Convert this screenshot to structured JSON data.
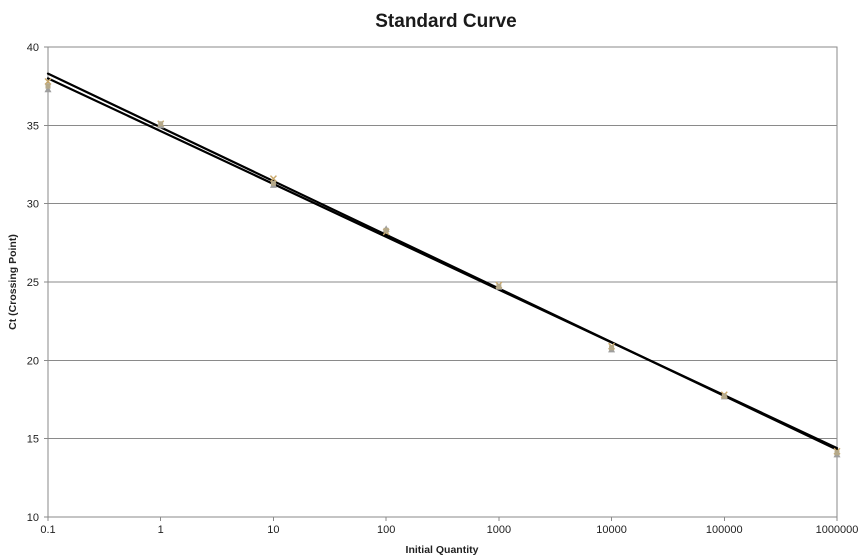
{
  "chart_data": {
    "type": "scatter",
    "title": "Standard Curve",
    "xlabel": "Initial Quantity",
    "ylabel": "Ct (Crossing Point)",
    "x_scale": "log",
    "xlim": [
      0.1,
      1000000
    ],
    "ylim": [
      10,
      40
    ],
    "x_ticks": [
      0.1,
      1,
      10,
      100,
      1000,
      10000,
      100000,
      1000000
    ],
    "x_tick_labels": [
      "0.1",
      "1",
      "10",
      "100",
      "1000",
      "10000",
      "100000",
      "1000000"
    ],
    "y_ticks": [
      10,
      15,
      20,
      25,
      30,
      35,
      40
    ],
    "y_tick_labels": [
      "10",
      "15",
      "20",
      "25",
      "30",
      "35",
      "40"
    ],
    "grid": "horizontal",
    "legend": "none",
    "series": [
      {
        "marker": "x",
        "color": "#c9a86a",
        "x": [
          0.1,
          1,
          10,
          100,
          1000,
          10000,
          100000,
          1000000
        ],
        "y": [
          37.8,
          35.1,
          31.6,
          28.2,
          24.8,
          20.9,
          17.8,
          14.2
        ]
      },
      {
        "marker": "triangle",
        "color": "#9e9e9e",
        "x": [
          0.1,
          1,
          10,
          100,
          1000,
          10000,
          100000,
          1000000
        ],
        "y": [
          37.3,
          35.0,
          31.2,
          28.4,
          24.7,
          20.7,
          17.7,
          14.0
        ]
      },
      {
        "marker": "square",
        "color": "#b5a98a",
        "x": [
          0.1,
          1,
          10,
          100,
          1000,
          10000,
          100000,
          1000000
        ],
        "y": [
          37.5,
          35.1,
          31.3,
          28.3,
          24.7,
          20.8,
          17.7,
          14.1
        ]
      }
    ],
    "trendlines": [
      {
        "x": [
          0.1,
          1000000
        ],
        "y": [
          38.3,
          14.3
        ],
        "color": "#000000"
      },
      {
        "x": [
          0.1,
          1000000
        ],
        "y": [
          38.0,
          14.4
        ],
        "color": "#000000"
      }
    ]
  }
}
